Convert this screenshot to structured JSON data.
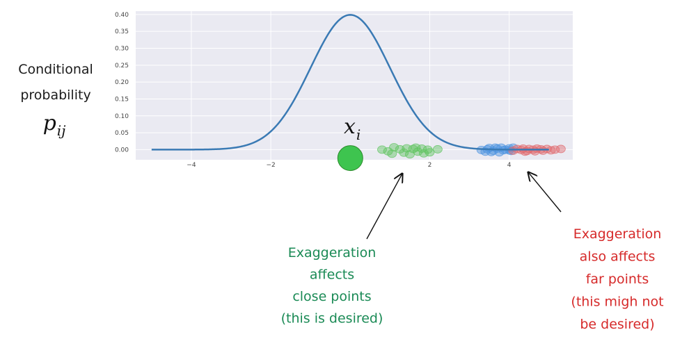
{
  "chart_data": {
    "type": "line",
    "title": "",
    "xlabel": "",
    "ylabel": "Conditional probability",
    "ylabel_symbol": "p",
    "ylabel_subscript": "ij",
    "xlim": [
      -5.4,
      5.6
    ],
    "ylim": [
      -0.03,
      0.41
    ],
    "x_ticks": [
      -4,
      -2,
      2,
      4
    ],
    "x_tick_labels": [
      "−4",
      "−2",
      "2",
      "4"
    ],
    "y_ticks": [
      0.0,
      0.05,
      0.1,
      0.15,
      0.2,
      0.25,
      0.3,
      0.35,
      0.4
    ],
    "y_tick_labels": [
      "0.00",
      "0.05",
      "0.10",
      "0.15",
      "0.20",
      "0.25",
      "0.30",
      "0.35",
      "0.40"
    ],
    "grid": true,
    "background": "#eaeaf2",
    "series": [
      {
        "curve": "normal_pdf",
        "mean": 0,
        "std": 1,
        "x_range": [
          -5,
          5
        ],
        "color": "#3a7ab4"
      }
    ],
    "center_point": {
      "label": "x",
      "label_subscript": "i",
      "x": 0,
      "y": -0.025,
      "color": "#3ec44f"
    },
    "point_groups": [
      {
        "group": "close",
        "color": "#5fc45f",
        "points": [
          {
            "x": 0.8,
            "y": 0.0
          },
          {
            "x": 0.95,
            "y": -0.005
          },
          {
            "x": 1.05,
            "y": -0.012
          },
          {
            "x": 1.1,
            "y": 0.007
          },
          {
            "x": 1.25,
            "y": 0.001
          },
          {
            "x": 1.35,
            "y": -0.009
          },
          {
            "x": 1.42,
            "y": 0.004
          },
          {
            "x": 1.5,
            "y": -0.014
          },
          {
            "x": 1.58,
            "y": 0.002
          },
          {
            "x": 1.65,
            "y": 0.006
          },
          {
            "x": 1.7,
            "y": -0.006
          },
          {
            "x": 1.8,
            "y": 0.003
          },
          {
            "x": 1.85,
            "y": -0.011
          },
          {
            "x": 1.95,
            "y": 0.0
          },
          {
            "x": 2.0,
            "y": -0.008
          },
          {
            "x": 2.2,
            "y": 0.001
          }
        ]
      },
      {
        "group": "far-blue",
        "color": "#4d94e0",
        "points": [
          {
            "x": 3.3,
            "y": -0.001
          },
          {
            "x": 3.4,
            "y": -0.006
          },
          {
            "x": 3.5,
            "y": 0.005
          },
          {
            "x": 3.6,
            "y": -0.003
          },
          {
            "x": 3.7,
            "y": 0.003
          },
          {
            "x": 3.75,
            "y": -0.008
          },
          {
            "x": 3.8,
            "y": 0.006
          },
          {
            "x": 3.9,
            "y": 0.0
          },
          {
            "x": 4.0,
            "y": 0.004
          },
          {
            "x": 4.05,
            "y": -0.004
          },
          {
            "x": 4.1,
            "y": 0.006
          },
          {
            "x": 3.45,
            "y": 0.001
          },
          {
            "x": 3.85,
            "y": -0.002
          },
          {
            "x": 4.0,
            "y": -0.002
          },
          {
            "x": 3.65,
            "y": 0.006
          },
          {
            "x": 3.55,
            "y": -0.007
          }
        ]
      },
      {
        "group": "far-red",
        "color": "#e06a6e",
        "points": [
          {
            "x": 4.1,
            "y": -0.003
          },
          {
            "x": 4.2,
            "y": 0.002
          },
          {
            "x": 4.3,
            "y": -0.001
          },
          {
            "x": 4.35,
            "y": 0.003
          },
          {
            "x": 4.45,
            "y": -0.004
          },
          {
            "x": 4.5,
            "y": 0.002
          },
          {
            "x": 4.6,
            "y": 0.0
          },
          {
            "x": 4.65,
            "y": -0.005
          },
          {
            "x": 4.7,
            "y": 0.003
          },
          {
            "x": 4.8,
            "y": 0.001
          },
          {
            "x": 4.85,
            "y": -0.003
          },
          {
            "x": 4.95,
            "y": 0.002
          },
          {
            "x": 5.05,
            "y": -0.002
          },
          {
            "x": 5.15,
            "y": 0.0
          },
          {
            "x": 5.3,
            "y": 0.002
          },
          {
            "x": 4.4,
            "y": -0.006
          }
        ]
      }
    ]
  },
  "annotations": {
    "close": {
      "lines": [
        "Exaggeration",
        "affects",
        "close points",
        "(this is desired)"
      ],
      "color": "#1a8a55"
    },
    "far": {
      "lines": [
        "Exaggeration",
        "also affects",
        "far points",
        "(this migh not",
        "be desired)"
      ],
      "color": "#d62a2a"
    }
  }
}
